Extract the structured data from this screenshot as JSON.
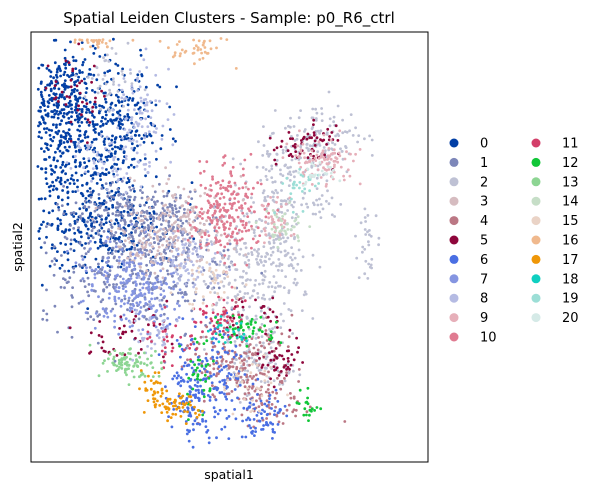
{
  "chart_data": {
    "type": "scatter",
    "title": "Spatial Leiden Clusters - Sample: p0_R6_ctrl",
    "xlabel": "spatial1",
    "ylabel": "spatial2",
    "xlim": [
      0,
      100
    ],
    "ylim": [
      0,
      100
    ],
    "ticks_visible": false,
    "grid": false,
    "legend_position": "right",
    "legend_columns": 2,
    "series": [
      {
        "name": "0",
        "color": "#023fa5",
        "regions": [
          [
            12,
            80,
            9,
            11,
            420
          ],
          [
            16,
            58,
            10,
            8,
            360
          ],
          [
            7,
            84,
            4,
            7,
            140
          ],
          [
            24,
            78,
            5,
            6,
            120
          ]
        ]
      },
      {
        "name": "1",
        "color": "#7d87b9",
        "regions": [
          [
            27,
            44,
            14,
            8,
            360
          ],
          [
            23,
            58,
            9,
            4,
            160
          ],
          [
            34,
            55,
            6,
            5,
            120
          ]
        ]
      },
      {
        "name": "2",
        "color": "#bec1d4",
        "regions": [
          [
            55,
            40,
            8,
            14,
            280
          ],
          [
            62,
            58,
            4,
            10,
            150
          ],
          [
            72,
            74,
            7,
            5,
            140
          ],
          [
            58,
            22,
            5,
            4,
            80
          ],
          [
            85,
            52,
            1.5,
            5,
            30
          ],
          [
            18,
            88,
            4,
            4,
            40
          ],
          [
            72,
            60,
            3,
            2,
            25
          ]
        ]
      },
      {
        "name": "3",
        "color": "#d6bcc0",
        "regions": [
          [
            38,
            56,
            8,
            6,
            160
          ],
          [
            30,
            50,
            6,
            5,
            80
          ]
        ]
      },
      {
        "name": "4",
        "color": "#bb7784",
        "regions": [
          [
            52,
            24,
            7,
            6,
            170
          ],
          [
            60,
            14,
            6,
            4,
            70
          ]
        ]
      },
      {
        "name": "5",
        "color": "#8e063b",
        "regions": [
          [
            70,
            74,
            5,
            3,
            60
          ],
          [
            62,
            23,
            3,
            3,
            45
          ],
          [
            24,
            30,
            6,
            4,
            45
          ],
          [
            11,
            85,
            4,
            6,
            40
          ],
          [
            55,
            34,
            6,
            3,
            30
          ]
        ]
      },
      {
        "name": "6",
        "color": "#4a6fe3",
        "regions": [
          [
            45,
            20,
            6,
            7,
            170
          ],
          [
            58,
            10,
            4,
            3,
            70
          ],
          [
            41,
            14,
            3,
            5,
            60
          ]
        ]
      },
      {
        "name": "7",
        "color": "#8595e1",
        "regions": [
          [
            24,
            42,
            7,
            6,
            160
          ],
          [
            30,
            38,
            6,
            4,
            80
          ]
        ]
      },
      {
        "name": "8",
        "color": "#b5bbe3",
        "regions": [
          [
            27,
            80,
            4,
            8,
            110
          ],
          [
            41,
            47,
            6,
            4,
            80
          ],
          [
            17,
            70,
            4,
            3,
            40
          ],
          [
            31,
            30,
            4,
            3,
            40
          ]
        ]
      },
      {
        "name": "9",
        "color": "#e6afb9",
        "regions": [
          [
            73,
            70,
            5,
            3,
            100
          ],
          [
            62,
            56,
            3,
            3,
            40
          ]
        ]
      },
      {
        "name": "10",
        "color": "#e07b91",
        "regions": [
          [
            49,
            58,
            5,
            6,
            220
          ]
        ]
      },
      {
        "name": "11",
        "color": "#d33f6a",
        "regions": [
          [
            47,
            34,
            4,
            3,
            50
          ],
          [
            36,
            28,
            4,
            3,
            30
          ]
        ]
      },
      {
        "name": "12",
        "color": "#11c638",
        "regions": [
          [
            54,
            31,
            5,
            2,
            45
          ],
          [
            42,
            22,
            2,
            6,
            35
          ],
          [
            70,
            13,
            2,
            2,
            20
          ]
        ]
      },
      {
        "name": "13",
        "color": "#8dd593",
        "regions": [
          [
            25,
            23,
            4,
            2,
            90
          ]
        ]
      },
      {
        "name": "14",
        "color": "#c6dec7",
        "regions": [
          [
            64,
            54,
            3,
            3,
            40
          ]
        ]
      },
      {
        "name": "15",
        "color": "#ead3c6",
        "regions": [
          [
            46,
            40,
            5,
            4,
            40
          ],
          [
            55,
            18,
            4,
            4,
            30
          ]
        ]
      },
      {
        "name": "16",
        "color": "#f0b98d",
        "regions": [
          [
            41,
            96,
            4,
            2,
            40
          ],
          [
            16,
            98,
            4,
            1,
            35
          ]
        ]
      },
      {
        "name": "17",
        "color": "#ef9708",
        "regions": [
          [
            37,
            13,
            4,
            2,
            60
          ],
          [
            31,
            17,
            2,
            2,
            25
          ]
        ]
      },
      {
        "name": "18",
        "color": "#0fcfc0",
        "regions": [
          [
            50,
            30,
            3,
            2,
            20
          ]
        ]
      },
      {
        "name": "19",
        "color": "#9cded6",
        "regions": [
          [
            68,
            64,
            3,
            3,
            30
          ]
        ]
      },
      {
        "name": "20",
        "color": "#d5eae7",
        "regions": [
          [
            72,
            67,
            3,
            2,
            25
          ]
        ]
      }
    ]
  }
}
